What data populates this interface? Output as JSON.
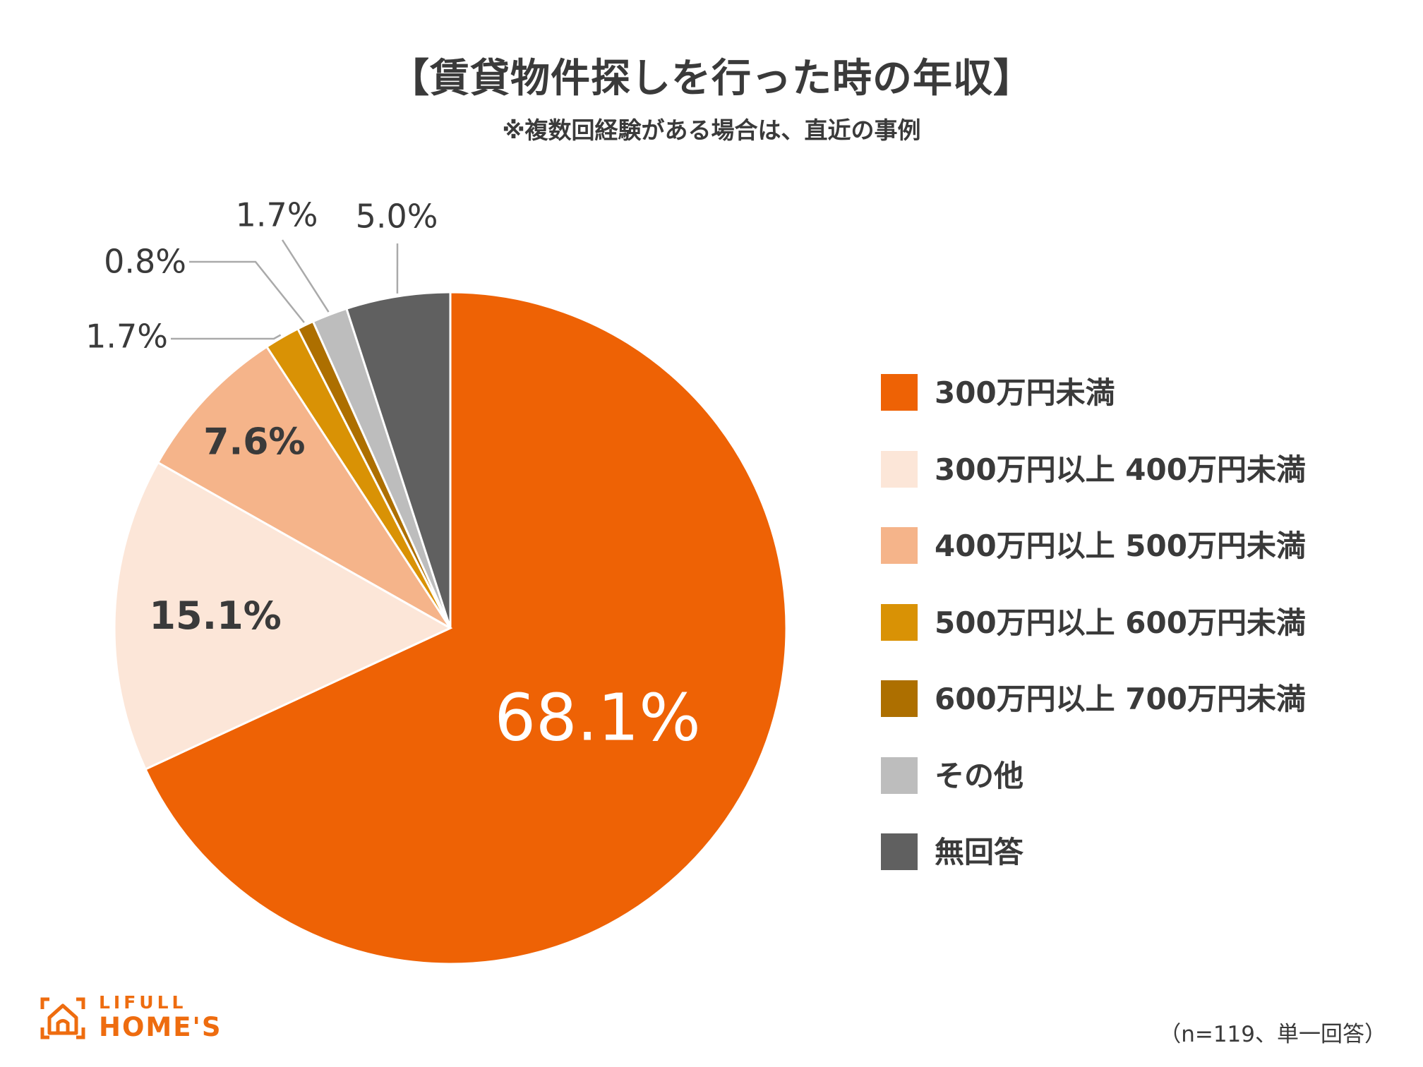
{
  "title": "【賃貸物件探しを行った時の年収】",
  "subtitle": "※複数回経験がある場合は、直近の事例",
  "note": "（n=119、単一回答）",
  "logo": {
    "top": "LIFULL",
    "bottom": "HOME'S",
    "icon": "house-icon"
  },
  "colors": {
    "accent": "#ee6c0f",
    "text": "#3a3a3a",
    "leader": "#aaaaaa"
  },
  "chart_data": {
    "type": "pie",
    "title": "【賃貸物件探しを行った時の年収】",
    "start": "12 o'clock, clockwise",
    "legend_position": "right",
    "slices": [
      {
        "label": "300万円未満",
        "value": 68.1,
        "display": "68.1%",
        "color": "#ee6205"
      },
      {
        "label": "300万円以上 400万円未満",
        "value": 15.1,
        "display": "15.1%",
        "color": "#fce6d8"
      },
      {
        "label": "400万円以上 500万円未満",
        "value": 7.6,
        "display": "7.6%",
        "color": "#f5b48a"
      },
      {
        "label": "500万円以上 600万円未満",
        "value": 1.7,
        "display": "1.7%",
        "color": "#d99205"
      },
      {
        "label": "600万円以上 700万円未満",
        "value": 0.8,
        "display": "0.8%",
        "color": "#ad6f00"
      },
      {
        "label": "その他",
        "value": 1.7,
        "display": "1.7%",
        "color": "#bdbdbd"
      },
      {
        "label": "無回答",
        "value": 5.0,
        "display": "5.0%",
        "color": "#606060"
      }
    ]
  }
}
